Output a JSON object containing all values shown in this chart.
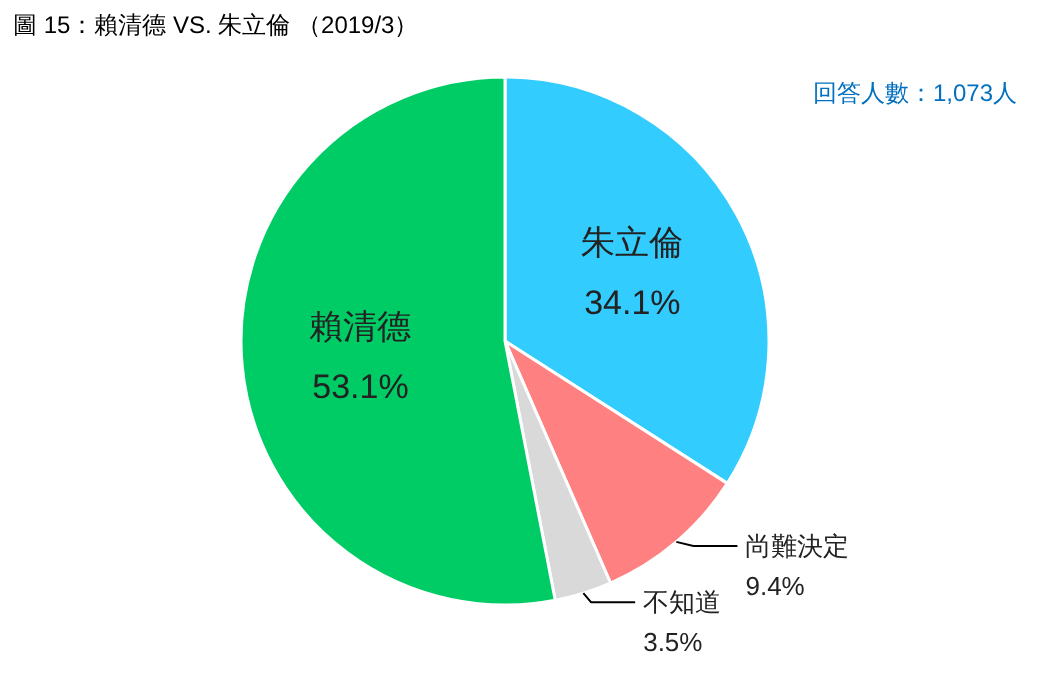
{
  "chart_data": {
    "type": "pie",
    "title": "圖 15：賴清德 VS. 朱立倫 （2019/3）",
    "categories": [
      "朱立倫",
      "尚難決定",
      "不知道",
      "賴清德"
    ],
    "values": [
      34.1,
      9.4,
      3.5,
      53.1
    ],
    "colors": [
      "#33ccff",
      "#ff8080",
      "#d9d9d9",
      "#00cc66"
    ],
    "value_labels": [
      "34.1%",
      "9.4%",
      "3.5%",
      "53.1%"
    ],
    "annotations": [
      "回答人數：1,073人"
    ]
  }
}
